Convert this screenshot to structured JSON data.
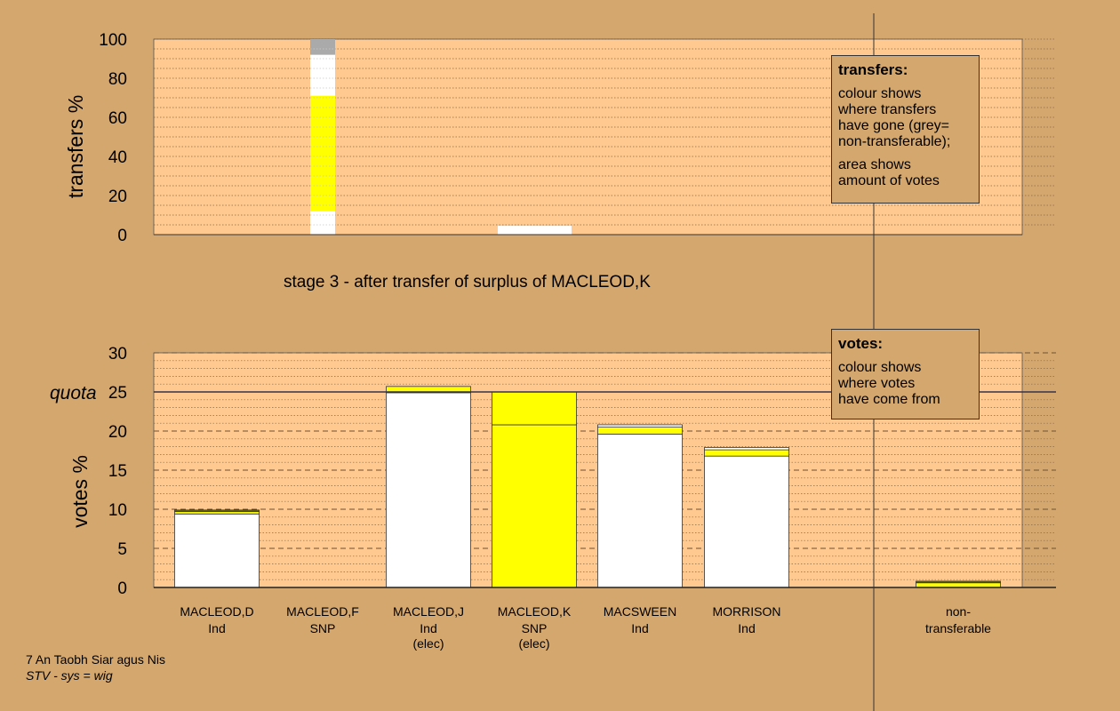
{
  "stage_caption": "stage 3 - after transfer of surplus of MACLEOD,K",
  "quota_label": "quota",
  "colors": {
    "background": "#d4a76f",
    "plot_background": "#ffc98f",
    "white": "#ffffff",
    "yellow": "#ffff00",
    "grey": "#aaaaaa",
    "olive": "#6b6b1a"
  },
  "legends": {
    "transfers": {
      "title": "transfers:",
      "lines1": [
        "colour shows",
        "where transfers",
        "have gone (grey=",
        "non-transferable);"
      ],
      "lines2": [
        "area shows",
        "amount of votes"
      ]
    },
    "votes": {
      "title": "votes:",
      "lines1": [
        "colour shows",
        "where votes",
        "have come from"
      ]
    }
  },
  "footer": {
    "line1": "7 An Taobh Siar agus Nis",
    "line2": "STV - sys = wig"
  },
  "chart_data": [
    {
      "type": "bar",
      "name": "transfers",
      "ylabel": "transfers %",
      "ylim": [
        0,
        100
      ],
      "yticks": [
        0,
        20,
        40,
        60,
        80,
        100
      ],
      "grid": true,
      "legend_placement": "top-right",
      "bars": [
        {
          "category": "MACLEOD,K",
          "stack": [
            {
              "from": 0,
              "to": 12,
              "color": "white"
            },
            {
              "from": 12,
              "to": 71,
              "color": "yellow"
            },
            {
              "from": 71,
              "to": 92,
              "color": "white"
            },
            {
              "from": 92,
              "to": 100,
              "color": "grey"
            }
          ]
        },
        {
          "category": "MACSWEEN",
          "stack": [
            {
              "from": 0,
              "to": 4.5,
              "color": "white"
            }
          ]
        }
      ]
    },
    {
      "type": "bar",
      "name": "votes",
      "ylabel": "votes %",
      "ylim": [
        0,
        30
      ],
      "yticks": [
        0,
        5,
        10,
        15,
        20,
        25,
        30
      ],
      "quota": 25,
      "grid": true,
      "legend_placement": "top-right",
      "categories": [
        {
          "name": "MACLEOD,D",
          "party": "Ind",
          "note": ""
        },
        {
          "name": "MACLEOD,F",
          "party": "SNP",
          "note": ""
        },
        {
          "name": "MACLEOD,J",
          "party": "Ind",
          "note": "(elec)"
        },
        {
          "name": "MACLEOD,K",
          "party": "SNP",
          "note": "(elec)"
        },
        {
          "name": "MACSWEEN",
          "party": "Ind",
          "note": ""
        },
        {
          "name": "MORRISON",
          "party": "Ind",
          "note": ""
        },
        {
          "name": "non-",
          "party": "transferable",
          "note": ""
        }
      ],
      "bars": [
        {
          "category": "MACLEOD,D",
          "stack": [
            {
              "from": 0,
              "to": 9.4,
              "color": "white"
            },
            {
              "from": 9.4,
              "to": 9.7,
              "color": "yellow"
            },
            {
              "from": 9.7,
              "to": 9.9,
              "color": "olive"
            }
          ]
        },
        {
          "category": "MACLEOD,F",
          "stack": []
        },
        {
          "category": "MACLEOD,J",
          "stack": [
            {
              "from": 0,
              "to": 24.9,
              "color": "white"
            },
            {
              "from": 24.9,
              "to": 25.7,
              "color": "yellow"
            }
          ]
        },
        {
          "category": "MACLEOD,K",
          "stack": [
            {
              "from": 0,
              "to": 20.8,
              "color": "yellow"
            },
            {
              "from": 20.8,
              "to": 25,
              "color": "yellow"
            }
          ]
        },
        {
          "category": "MACSWEEN",
          "stack": [
            {
              "from": 0,
              "to": 19.6,
              "color": "white"
            },
            {
              "from": 19.6,
              "to": 20.5,
              "color": "yellow"
            },
            {
              "from": 20.5,
              "to": 20.8,
              "color": "white"
            }
          ]
        },
        {
          "category": "MORRISON",
          "stack": [
            {
              "from": 0,
              "to": 16.8,
              "color": "white"
            },
            {
              "from": 16.8,
              "to": 17.6,
              "color": "yellow"
            },
            {
              "from": 17.6,
              "to": 17.9,
              "color": "white"
            }
          ]
        },
        {
          "category": "non-transferable",
          "stack": [
            {
              "from": 0,
              "to": 0.6,
              "color": "yellow"
            },
            {
              "from": 0.6,
              "to": 0.8,
              "color": "olive"
            }
          ]
        }
      ]
    }
  ]
}
